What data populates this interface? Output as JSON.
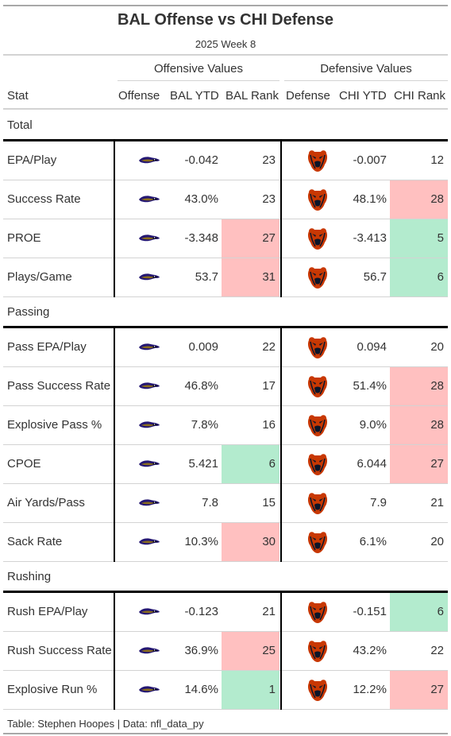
{
  "title": "BAL Offense vs CHI Defense",
  "subtitle": "2025 Week 8",
  "spanners": {
    "offense": "Offensive Values",
    "defense": "Defensive Values"
  },
  "columns": [
    "Stat",
    "Offense",
    "BAL YTD",
    "BAL Rank",
    "Defense",
    "CHI YTD",
    "CHI Rank"
  ],
  "logos": {
    "offense_icon": "ravens-logo-icon",
    "defense_icon": "bears-logo-icon"
  },
  "colors": {
    "good": "#b3ebce",
    "bad": "#ffc0c0",
    "divider": "#000000"
  },
  "groups": [
    {
      "label": "Total",
      "rows": [
        {
          "stat": "EPA/Play",
          "bal_ytd": "-0.042",
          "bal_rank": "23",
          "bal_shade": "",
          "chi_ytd": "-0.007",
          "chi_rank": "12",
          "chi_shade": ""
        },
        {
          "stat": "Success Rate",
          "bal_ytd": "43.0%",
          "bal_rank": "23",
          "bal_shade": "",
          "chi_ytd": "48.1%",
          "chi_rank": "28",
          "chi_shade": "bad"
        },
        {
          "stat": "PROE",
          "bal_ytd": "-3.348",
          "bal_rank": "27",
          "bal_shade": "bad",
          "chi_ytd": "-3.413",
          "chi_rank": "5",
          "chi_shade": "good"
        },
        {
          "stat": "Plays/Game",
          "bal_ytd": "53.7",
          "bal_rank": "31",
          "bal_shade": "bad",
          "chi_ytd": "56.7",
          "chi_rank": "6",
          "chi_shade": "good"
        }
      ]
    },
    {
      "label": "Passing",
      "rows": [
        {
          "stat": "Pass EPA/Play",
          "bal_ytd": "0.009",
          "bal_rank": "22",
          "bal_shade": "",
          "chi_ytd": "0.094",
          "chi_rank": "20",
          "chi_shade": ""
        },
        {
          "stat": "Pass Success Rate",
          "bal_ytd": "46.8%",
          "bal_rank": "17",
          "bal_shade": "",
          "chi_ytd": "51.4%",
          "chi_rank": "28",
          "chi_shade": "bad"
        },
        {
          "stat": "Explosive Pass %",
          "bal_ytd": "7.8%",
          "bal_rank": "16",
          "bal_shade": "",
          "chi_ytd": "9.0%",
          "chi_rank": "28",
          "chi_shade": "bad"
        },
        {
          "stat": "CPOE",
          "bal_ytd": "5.421",
          "bal_rank": "6",
          "bal_shade": "good",
          "chi_ytd": "6.044",
          "chi_rank": "27",
          "chi_shade": "bad"
        },
        {
          "stat": "Air Yards/Pass",
          "bal_ytd": "7.8",
          "bal_rank": "15",
          "bal_shade": "",
          "chi_ytd": "7.9",
          "chi_rank": "21",
          "chi_shade": ""
        },
        {
          "stat": "Sack Rate",
          "bal_ytd": "10.3%",
          "bal_rank": "30",
          "bal_shade": "bad",
          "chi_ytd": "6.1%",
          "chi_rank": "20",
          "chi_shade": ""
        }
      ]
    },
    {
      "label": "Rushing",
      "rows": [
        {
          "stat": "Rush EPA/Play",
          "bal_ytd": "-0.123",
          "bal_rank": "21",
          "bal_shade": "",
          "chi_ytd": "-0.151",
          "chi_rank": "6",
          "chi_shade": "good"
        },
        {
          "stat": "Rush Success Rate",
          "bal_ytd": "36.9%",
          "bal_rank": "25",
          "bal_shade": "bad",
          "chi_ytd": "43.2%",
          "chi_rank": "22",
          "chi_shade": ""
        },
        {
          "stat": "Explosive Run %",
          "bal_ytd": "14.6%",
          "bal_rank": "1",
          "bal_shade": "good",
          "chi_ytd": "12.2%",
          "chi_rank": "27",
          "chi_shade": "bad"
        }
      ]
    }
  ],
  "source_note": "Table: Stephen Hoopes | Data: nfl_data_py"
}
